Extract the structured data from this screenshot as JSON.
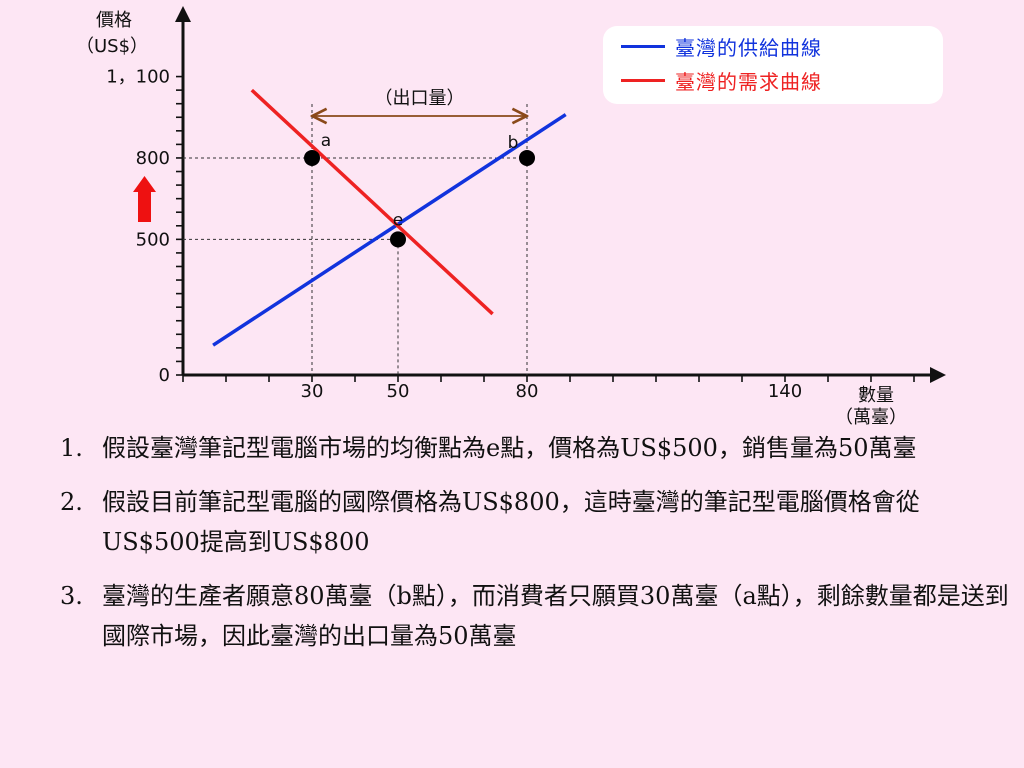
{
  "chart_data": {
    "type": "line",
    "ylabel": "價格",
    "yunit": "（US$）",
    "xlabel": "數量",
    "xunit": "（萬臺）",
    "ytick_labels": [
      {
        "label": "0",
        "value": 0
      },
      {
        "label": "500",
        "value": 500
      },
      {
        "label": "800",
        "value": 800
      },
      {
        "label": "1，100",
        "value": 1100
      }
    ],
    "xtick_labels": [
      {
        "label": "30",
        "value": 30
      },
      {
        "label": "50",
        "value": 50
      },
      {
        "label": "80",
        "value": 80
      },
      {
        "label": "140",
        "value": 140
      }
    ],
    "xlim": [
      0,
      170
    ],
    "ylim": [
      0,
      1120
    ],
    "series": [
      {
        "name": "臺灣的供給曲線",
        "color": "#1133dd",
        "x": [
          7,
          89
        ],
        "y": [
          110,
          960
        ]
      },
      {
        "name": "臺灣的需求曲線",
        "color": "#ee2222",
        "x": [
          16,
          72
        ],
        "y": [
          1050,
          225
        ]
      }
    ],
    "points": [
      {
        "label": "a",
        "x": 30,
        "y": 800
      },
      {
        "label": "b",
        "x": 80,
        "y": 800
      },
      {
        "label": "e",
        "x": 50,
        "y": 500
      }
    ],
    "annotation": {
      "label": "（出口量）",
      "from": 30,
      "to": 80
    },
    "price_arrow_color": "#ee1111",
    "grid": false,
    "legend_position": "top-right"
  },
  "notes": [
    {
      "num": "1.",
      "text": "假設臺灣筆記型電腦市場的均衡點為e點，價格為US$500，銷售量為50萬臺"
    },
    {
      "num": "2.",
      "text": "假設目前筆記型電腦的國際價格為US$800，這時臺灣的筆記型電腦價格會從US$500提高到US$800"
    },
    {
      "num": "3.",
      "text": "臺灣的生產者願意80萬臺（b點），而消費者只願買30萬臺（a點），剩餘數量都是送到國際市場，因此臺灣的出口量為50萬臺"
    }
  ]
}
